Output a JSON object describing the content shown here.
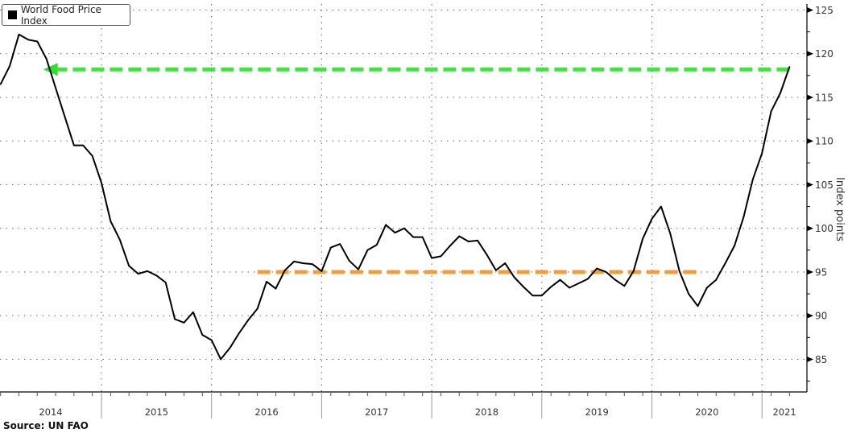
{
  "chart_data": {
    "type": "line",
    "title": "",
    "legend": {
      "label": "World Food Price Index",
      "placement": "top-left"
    },
    "xlabel": "",
    "ylabel": "Index points",
    "ylim": [
      80,
      125
    ],
    "yticks": [
      85,
      90,
      95,
      100,
      105,
      110,
      115,
      120,
      125
    ],
    "xlim": [
      "2014-01",
      "2021-06"
    ],
    "xticks": [
      "2014",
      "2015",
      "2016",
      "2017",
      "2018",
      "2019",
      "2020",
      "2021"
    ],
    "grid": true,
    "series": [
      {
        "name": "World Food Price Index",
        "color": "#000000",
        "start": "2014-02",
        "frequency": "monthly",
        "values": [
          116.5,
          118.6,
          122.2,
          121.6,
          121.4,
          119.4,
          116.1,
          112.8,
          109.5,
          109.5,
          108.3,
          105.2,
          100.8,
          98.7,
          95.7,
          94.8,
          95.1,
          94.6,
          93.8,
          89.6,
          89.2,
          90.4,
          87.8,
          87.2,
          85.0,
          86.3,
          88.0,
          89.5,
          90.8,
          93.9,
          93.1,
          95.2,
          96.2,
          96.0,
          95.9,
          95.1,
          97.8,
          98.2,
          96.3,
          95.3,
          97.5,
          98.1,
          100.4,
          99.5,
          100.0,
          99.0,
          99.0,
          96.6,
          96.8,
          98.0,
          99.1,
          98.5,
          98.6,
          97.0,
          95.2,
          96.0,
          94.4,
          93.3,
          92.3,
          92.3,
          93.3,
          94.1,
          93.2,
          93.7,
          94.2,
          95.4,
          95.0,
          94.1,
          93.4,
          95.1,
          98.8,
          101.1,
          102.5,
          99.4,
          95.1,
          92.5,
          91.1,
          93.2,
          94.1,
          96.0,
          98.0,
          101.3,
          105.6,
          108.6,
          113.4,
          115.5,
          118.5
        ]
      }
    ],
    "annotations": [
      {
        "type": "dashed-arrow",
        "color": "#33dd33",
        "value": 118.2,
        "from": "2021-04",
        "to": "2014-07"
      },
      {
        "type": "dashed-line",
        "color": "#f0952a",
        "value": 95,
        "from": "2016-06",
        "to": "2020-06"
      }
    ],
    "source": "Source:  UN FAO"
  }
}
